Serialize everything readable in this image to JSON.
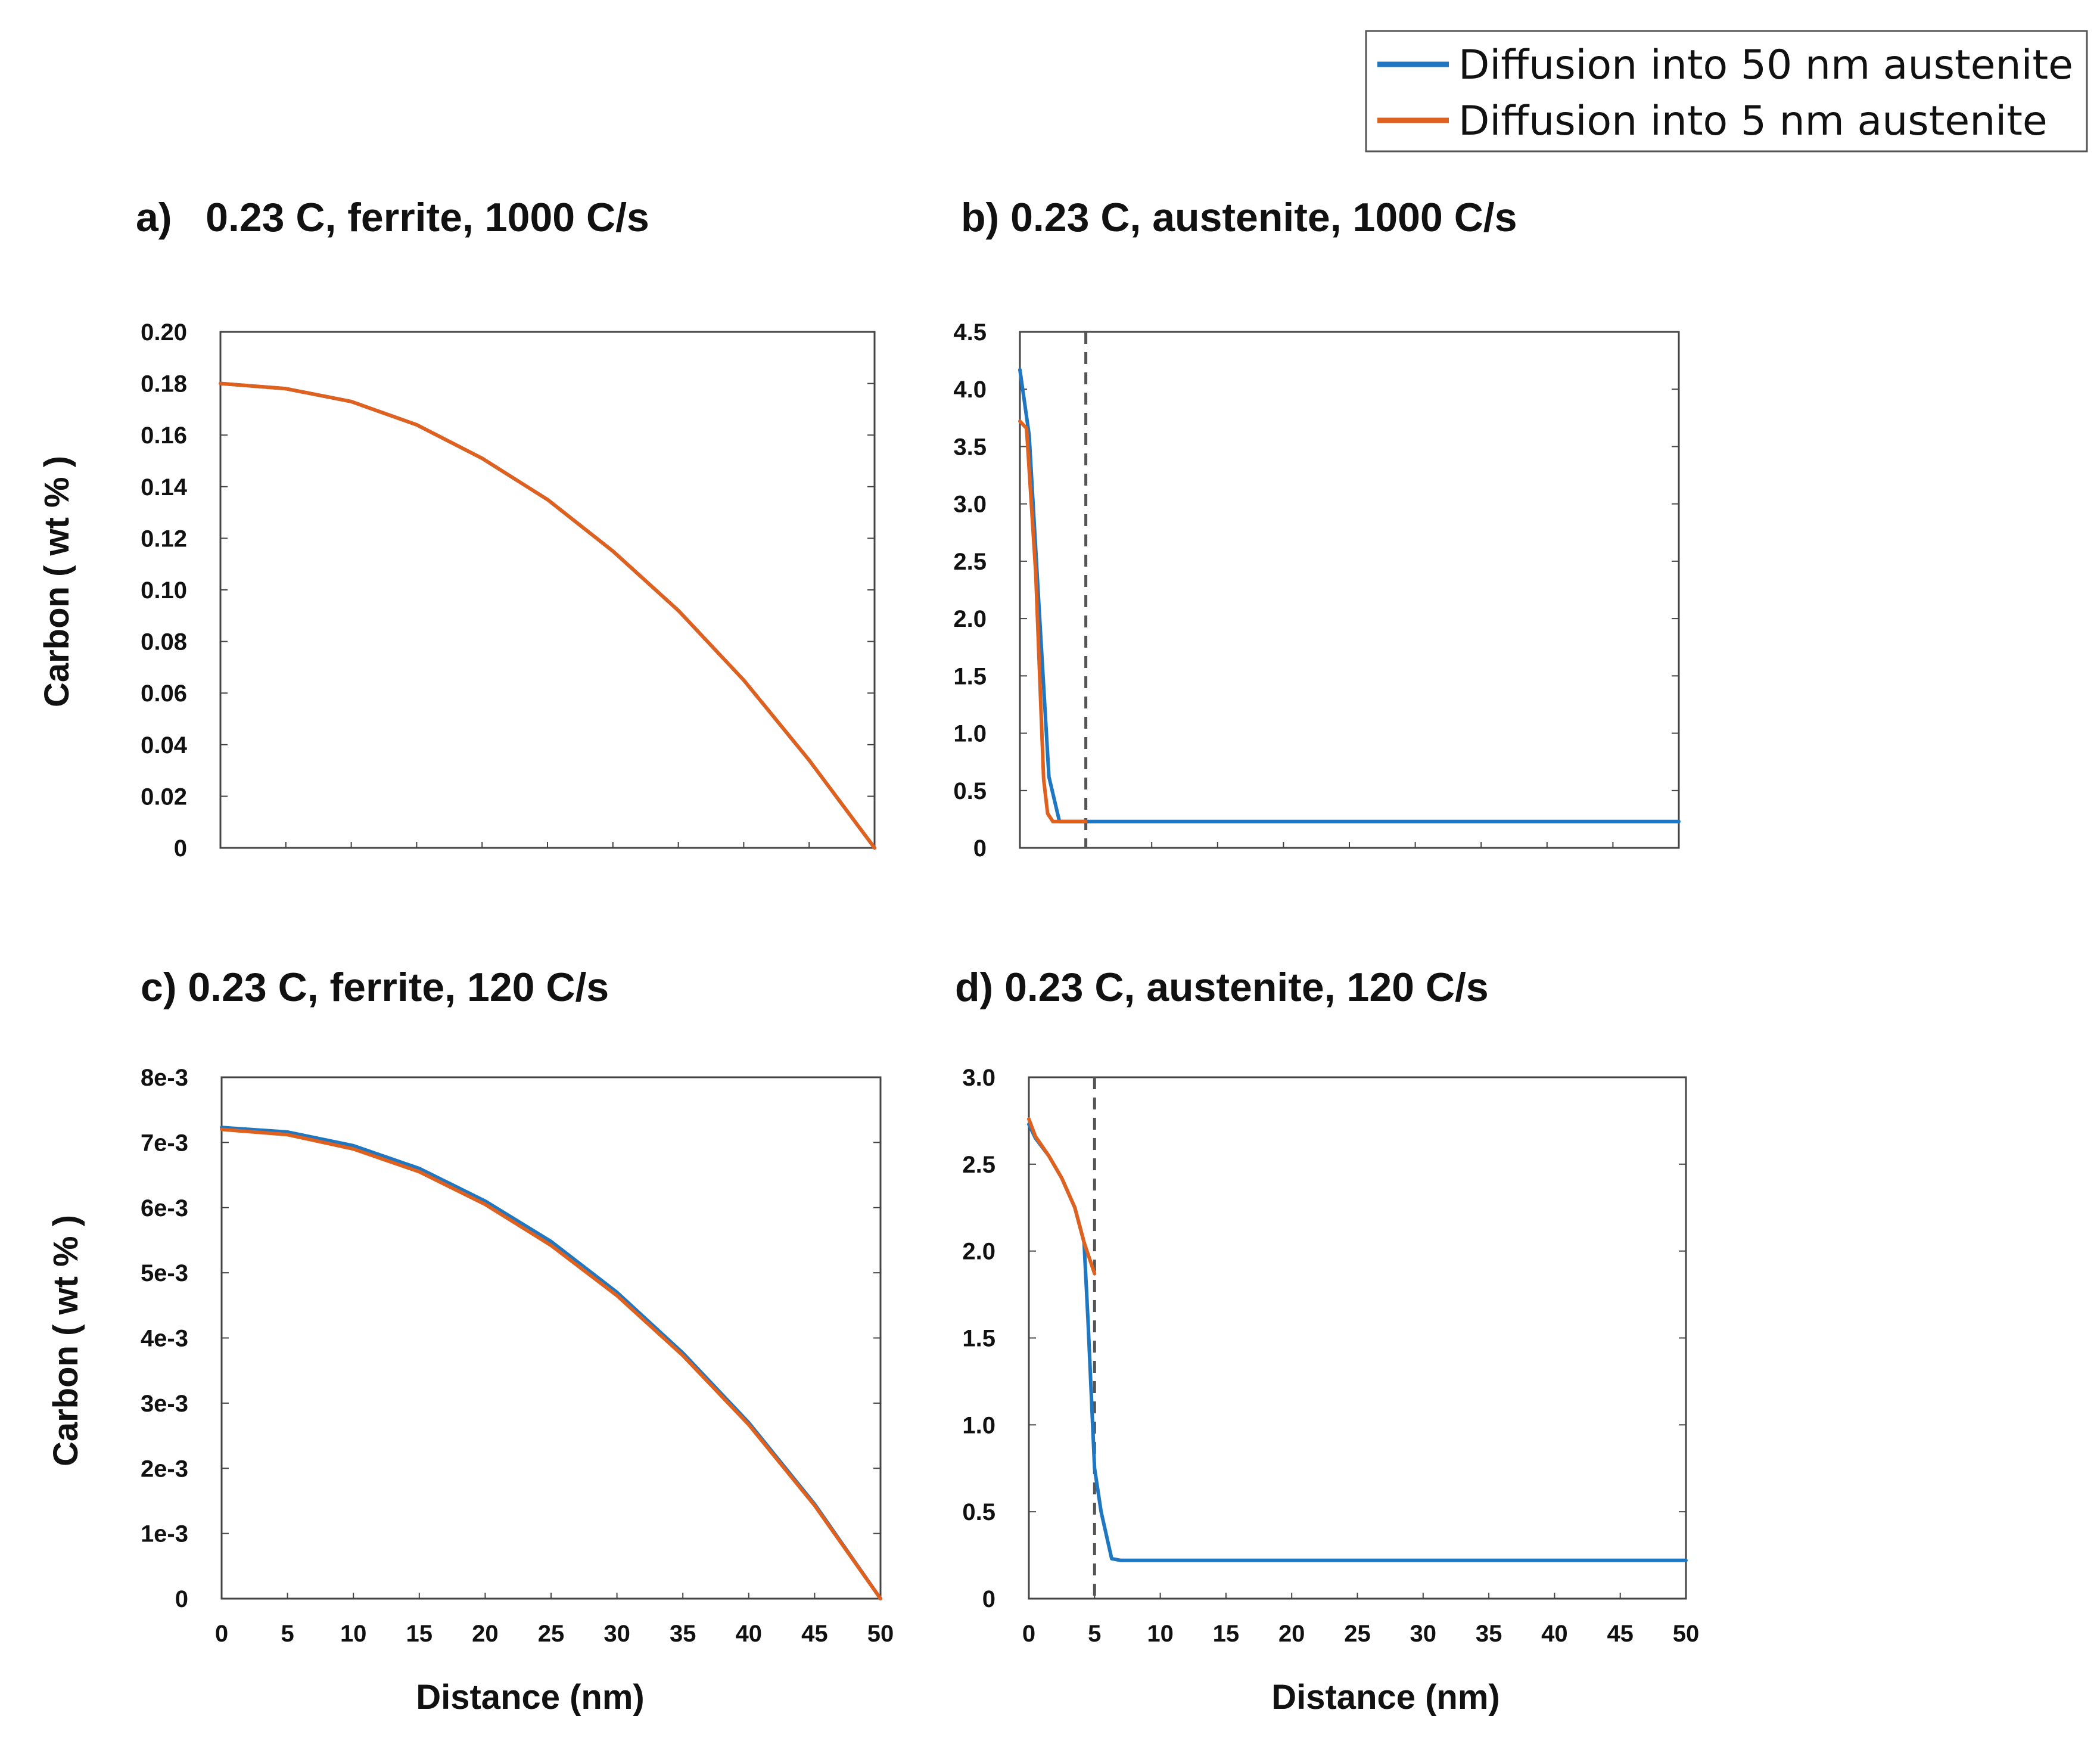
{
  "colors": {
    "series_50nm": "#1f77c2",
    "series_5nm": "#e0601e",
    "interface_line": "#555555"
  },
  "legend": {
    "entries": [
      {
        "label": "Diffusion into 50 nm austenite",
        "color": "#1f77c2"
      },
      {
        "label": "Diffusion into 5 nm austenite",
        "color": "#e0601e"
      }
    ]
  },
  "chart_data": [
    {
      "id": "a",
      "type": "line",
      "title": "a)   0.23 C, ferrite, 1000 C/s",
      "xlabel": "",
      "ylabel": "Carbon ( wt % )",
      "xlim": [
        0,
        50
      ],
      "ylim": [
        0,
        0.2
      ],
      "xticks": [],
      "xtick_labels": [],
      "yticks": [
        0,
        0.02,
        0.04,
        0.06,
        0.08,
        0.1,
        0.12,
        0.14,
        0.16,
        0.18,
        0.2
      ],
      "ytick_labels": [
        "0",
        "0.02",
        "0.04",
        "0.06",
        "0.08",
        "0.10",
        "0.12",
        "0.14",
        "0.16",
        "0.18",
        "0.20"
      ],
      "series": [
        {
          "name": "Diffusion into 50 nm austenite",
          "x": [
            0,
            5,
            10,
            15,
            20,
            25,
            30,
            35,
            40,
            45,
            50
          ],
          "y": [
            0.18,
            0.178,
            0.173,
            0.164,
            0.151,
            0.135,
            0.115,
            0.092,
            0.065,
            0.034,
            0.0
          ]
        },
        {
          "name": "Diffusion into 5 nm austenite",
          "x": [
            0,
            5,
            10,
            15,
            20,
            25,
            30,
            35,
            40,
            45,
            50
          ],
          "y": [
            0.18,
            0.178,
            0.173,
            0.164,
            0.151,
            0.135,
            0.115,
            0.092,
            0.065,
            0.034,
            0.0
          ]
        }
      ]
    },
    {
      "id": "b",
      "type": "line",
      "title": "b) 0.23 C, austenite, 1000 C/s",
      "xlabel": "",
      "ylabel": "",
      "xlim": [
        0,
        50
      ],
      "ylim": [
        0,
        4.5
      ],
      "xticks": [],
      "xtick_labels": [],
      "yticks": [
        0,
        0.5,
        1.0,
        1.5,
        2.0,
        2.5,
        3.0,
        3.5,
        4.0,
        4.5
      ],
      "ytick_labels": [
        "0",
        "0.5",
        "1.0",
        "1.5",
        "2.0",
        "2.5",
        "3.0",
        "3.5",
        "4.0",
        "4.5"
      ],
      "interface_x": 5,
      "series": [
        {
          "name": "Diffusion into 50 nm austenite",
          "x": [
            0,
            0.7,
            1.5,
            2.2,
            3.0,
            5,
            10,
            20,
            30,
            40,
            50
          ],
          "y": [
            4.17,
            3.6,
            2.0,
            0.62,
            0.23,
            0.23,
            0.23,
            0.23,
            0.23,
            0.23,
            0.23
          ]
        },
        {
          "name": "Diffusion into 5 nm austenite",
          "x": [
            0,
            0.5,
            1.2,
            1.8,
            2.1,
            2.5,
            3.5,
            5.0
          ],
          "y": [
            3.72,
            3.66,
            2.4,
            0.6,
            0.3,
            0.23,
            0.23,
            0.23
          ]
        }
      ]
    },
    {
      "id": "c",
      "type": "line",
      "title": "c) 0.23 C, ferrite, 120 C/s",
      "xlabel": "Distance (nm)",
      "ylabel": "Carbon ( wt % )",
      "xlim": [
        0,
        50
      ],
      "ylim": [
        0,
        0.008
      ],
      "xticks": [
        0,
        5,
        10,
        15,
        20,
        25,
        30,
        35,
        40,
        45,
        50
      ],
      "xtick_labels": [
        "0",
        "5",
        "10",
        "15",
        "20",
        "25",
        "30",
        "35",
        "40",
        "45",
        "50"
      ],
      "yticks": [
        0,
        0.001,
        0.002,
        0.003,
        0.004,
        0.005,
        0.006,
        0.007,
        0.008
      ],
      "ytick_labels": [
        "0",
        "1e-3",
        "2e-3",
        "3e-3",
        "4e-3",
        "5e-3",
        "6e-3",
        "7e-3",
        "8e-3"
      ],
      "series": [
        {
          "name": "Diffusion into 50 nm austenite",
          "x": [
            0,
            5,
            10,
            15,
            20,
            25,
            30,
            35,
            40,
            45,
            50
          ],
          "y": [
            0.00723,
            0.00716,
            0.00695,
            0.0066,
            0.0061,
            0.00548,
            0.0047,
            0.00377,
            0.0027,
            0.00145,
            0.0
          ]
        },
        {
          "name": "Diffusion into 5 nm austenite",
          "x": [
            0,
            5,
            10,
            15,
            20,
            25,
            30,
            35,
            40,
            45,
            50
          ],
          "y": [
            0.0072,
            0.00712,
            0.0069,
            0.00655,
            0.00605,
            0.00542,
            0.00465,
            0.00373,
            0.00267,
            0.00143,
            0.0
          ]
        }
      ]
    },
    {
      "id": "d",
      "type": "line",
      "title": "d) 0.23 C, austenite, 120 C/s",
      "xlabel": "Distance (nm)",
      "ylabel": "",
      "xlim": [
        0,
        50
      ],
      "ylim": [
        0,
        3.0
      ],
      "xticks": [
        0,
        5,
        10,
        15,
        20,
        25,
        30,
        35,
        40,
        45,
        50
      ],
      "xtick_labels": [
        "0",
        "5",
        "10",
        "15",
        "20",
        "25",
        "30",
        "35",
        "40",
        "45",
        "50"
      ],
      "yticks": [
        0,
        0.5,
        1.0,
        1.5,
        2.0,
        2.5,
        3.0
      ],
      "ytick_labels": [
        "0",
        "0.5",
        "1.0",
        "1.5",
        "2.0",
        "2.5",
        "3.0"
      ],
      "interface_x": 5,
      "series": [
        {
          "name": "Diffusion into 50 nm austenite",
          "x": [
            0,
            0.5,
            1.5,
            2.5,
            3.5,
            4.2,
            4.5,
            5.0,
            5.5,
            6.3,
            7,
            10,
            20,
            30,
            40,
            50
          ],
          "y": [
            2.73,
            2.65,
            2.55,
            2.42,
            2.25,
            2.05,
            1.6,
            0.75,
            0.5,
            0.23,
            0.22,
            0.22,
            0.22,
            0.22,
            0.22,
            0.22
          ]
        },
        {
          "name": "Diffusion into 5 nm austenite",
          "x": [
            0,
            0.5,
            1.5,
            2.5,
            3.5,
            4.2,
            5.0
          ],
          "y": [
            2.76,
            2.66,
            2.55,
            2.42,
            2.25,
            2.05,
            1.87
          ]
        }
      ]
    }
  ]
}
